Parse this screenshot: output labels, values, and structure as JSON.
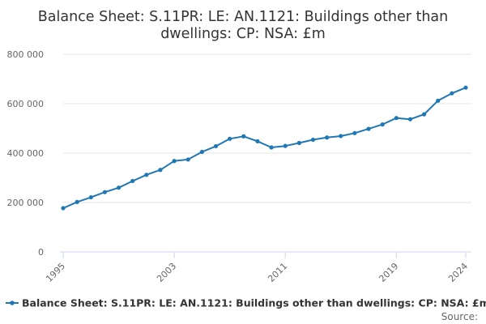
{
  "chart_data": {
    "type": "line",
    "title_lines": [
      "Balance Sheet: S.11PR: LE: AN.1121: Buildings other than",
      "dwellings: CP: NSA: £m"
    ],
    "xlabel": "",
    "ylabel": "",
    "x_tick_labels": [
      "1995",
      "2003",
      "2011",
      "2019",
      "2024"
    ],
    "x_ticks": [
      1995,
      2003,
      2011,
      2019,
      2024
    ],
    "y_tick_labels": [
      "0",
      "200 000",
      "400 000",
      "600 000",
      "800 000"
    ],
    "y_ticks": [
      0,
      200000,
      400000,
      600000,
      800000
    ],
    "xlim": [
      1995,
      2024
    ],
    "ylim": [
      0,
      800000
    ],
    "grid": "horizontal",
    "legend_position": "bottom",
    "series": [
      {
        "name": "Balance Sheet: S.11PR: LE: AN.1121: Buildings other than dwellings: CP: NSA: £m",
        "color": "#1f77b4",
        "x": [
          1995,
          1996,
          1997,
          1998,
          1999,
          2000,
          2001,
          2002,
          2003,
          2004,
          2005,
          2006,
          2007,
          2008,
          2009,
          2010,
          2011,
          2012,
          2013,
          2014,
          2015,
          2016,
          2017,
          2018,
          2019,
          2020,
          2021,
          2022,
          2023,
          2024
        ],
        "values": [
          177000,
          202000,
          221000,
          242000,
          260000,
          287000,
          312000,
          332000,
          368000,
          374000,
          405000,
          428000,
          458000,
          468000,
          448000,
          423000,
          429000,
          441000,
          454000,
          463000,
          469000,
          481000,
          498000,
          516000,
          542000,
          537000,
          557000,
          612000,
          642000,
          665000
        ]
      }
    ],
    "source_label": "Source:"
  }
}
